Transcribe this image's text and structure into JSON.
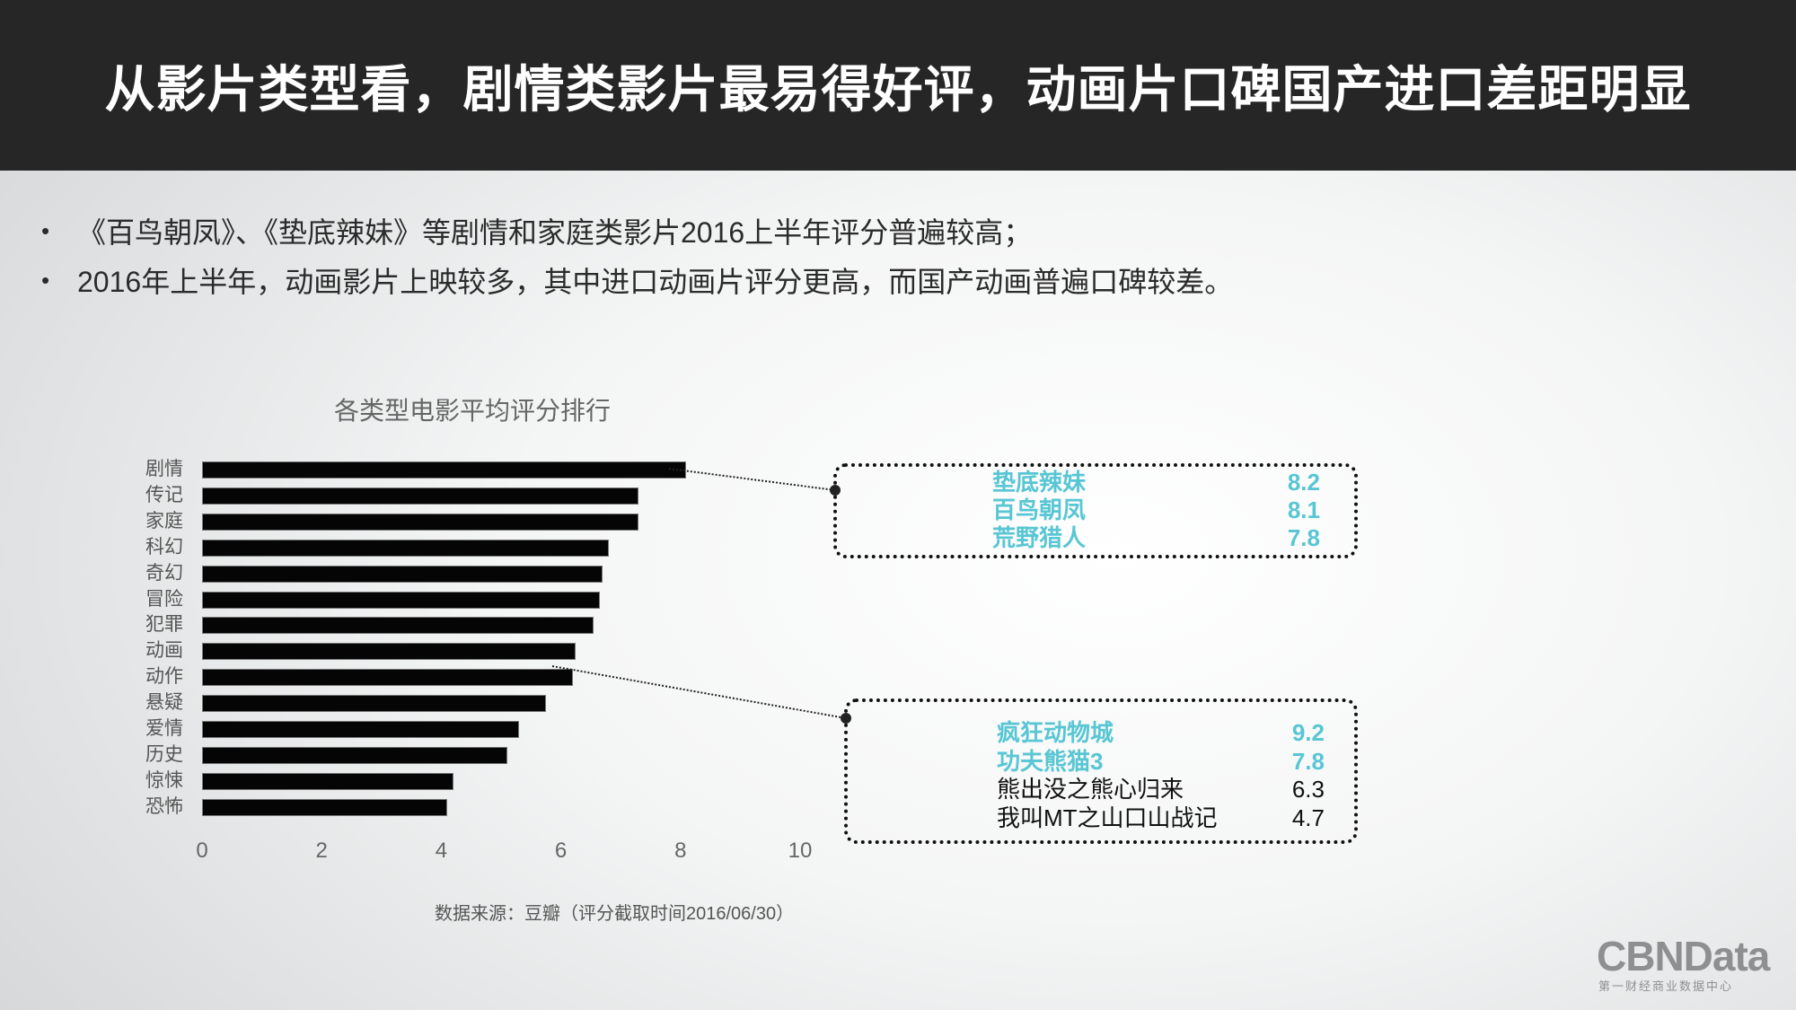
{
  "header": {
    "title": "从影片类型看，剧情类影片最易得好评，动画片口碑国产进口差距明显"
  },
  "bullets": [
    "《百鸟朝凤》、《垫底辣妹》等剧情和家庭类影片2016上半年评分普遍较高；",
    "2016年上半年，动画影片上映较多，其中进口动画片评分更高，而国产动画普遍口碑较差。"
  ],
  "bullet_char": "•",
  "chart_data": {
    "type": "bar",
    "title": "各类型电影平均评分排行",
    "orientation": "horizontal",
    "categories": [
      "剧情",
      "传记",
      "家庭",
      "科幻",
      "奇幻",
      "冒险",
      "犯罪",
      "动画",
      "动作",
      "悬疑",
      "爱情",
      "历史",
      "惊悚",
      "恐怖"
    ],
    "values": [
      8.1,
      7.3,
      7.3,
      6.8,
      6.7,
      6.65,
      6.55,
      6.25,
      6.2,
      5.75,
      5.3,
      5.1,
      4.2,
      4.1
    ],
    "xlim": [
      0,
      10
    ],
    "xticks": [
      "0",
      "2",
      "4",
      "6",
      "8",
      "10"
    ],
    "xlabel": "",
    "ylabel": "",
    "grid": false,
    "bar_color": "#050505"
  },
  "source": "数据来源：豆瓣（评分截取时间2016/06/30）",
  "callouts": [
    {
      "category": "剧情",
      "items": [
        {
          "name": "垫底辣妹",
          "score": "8.2",
          "highlight": true
        },
        {
          "name": "百鸟朝凤",
          "score": "8.1",
          "highlight": true
        },
        {
          "name": "荒野猎人",
          "score": "7.8",
          "highlight": true
        }
      ]
    },
    {
      "category": "动画",
      "items": [
        {
          "name": "疯狂动物城",
          "score": "9.2",
          "highlight": true
        },
        {
          "name": "功夫熊猫3",
          "score": "7.8",
          "highlight": true
        },
        {
          "name": "熊出没之熊心归来",
          "score": "6.3",
          "highlight": false
        },
        {
          "name": "我叫MT之山口山战记",
          "score": "4.7",
          "highlight": false
        }
      ]
    }
  ],
  "colors": {
    "highlight": "#58c6d4",
    "header_bg": "#262626"
  },
  "logo": {
    "main": "CBNData",
    "sub": "第一财经商业数据中心"
  }
}
